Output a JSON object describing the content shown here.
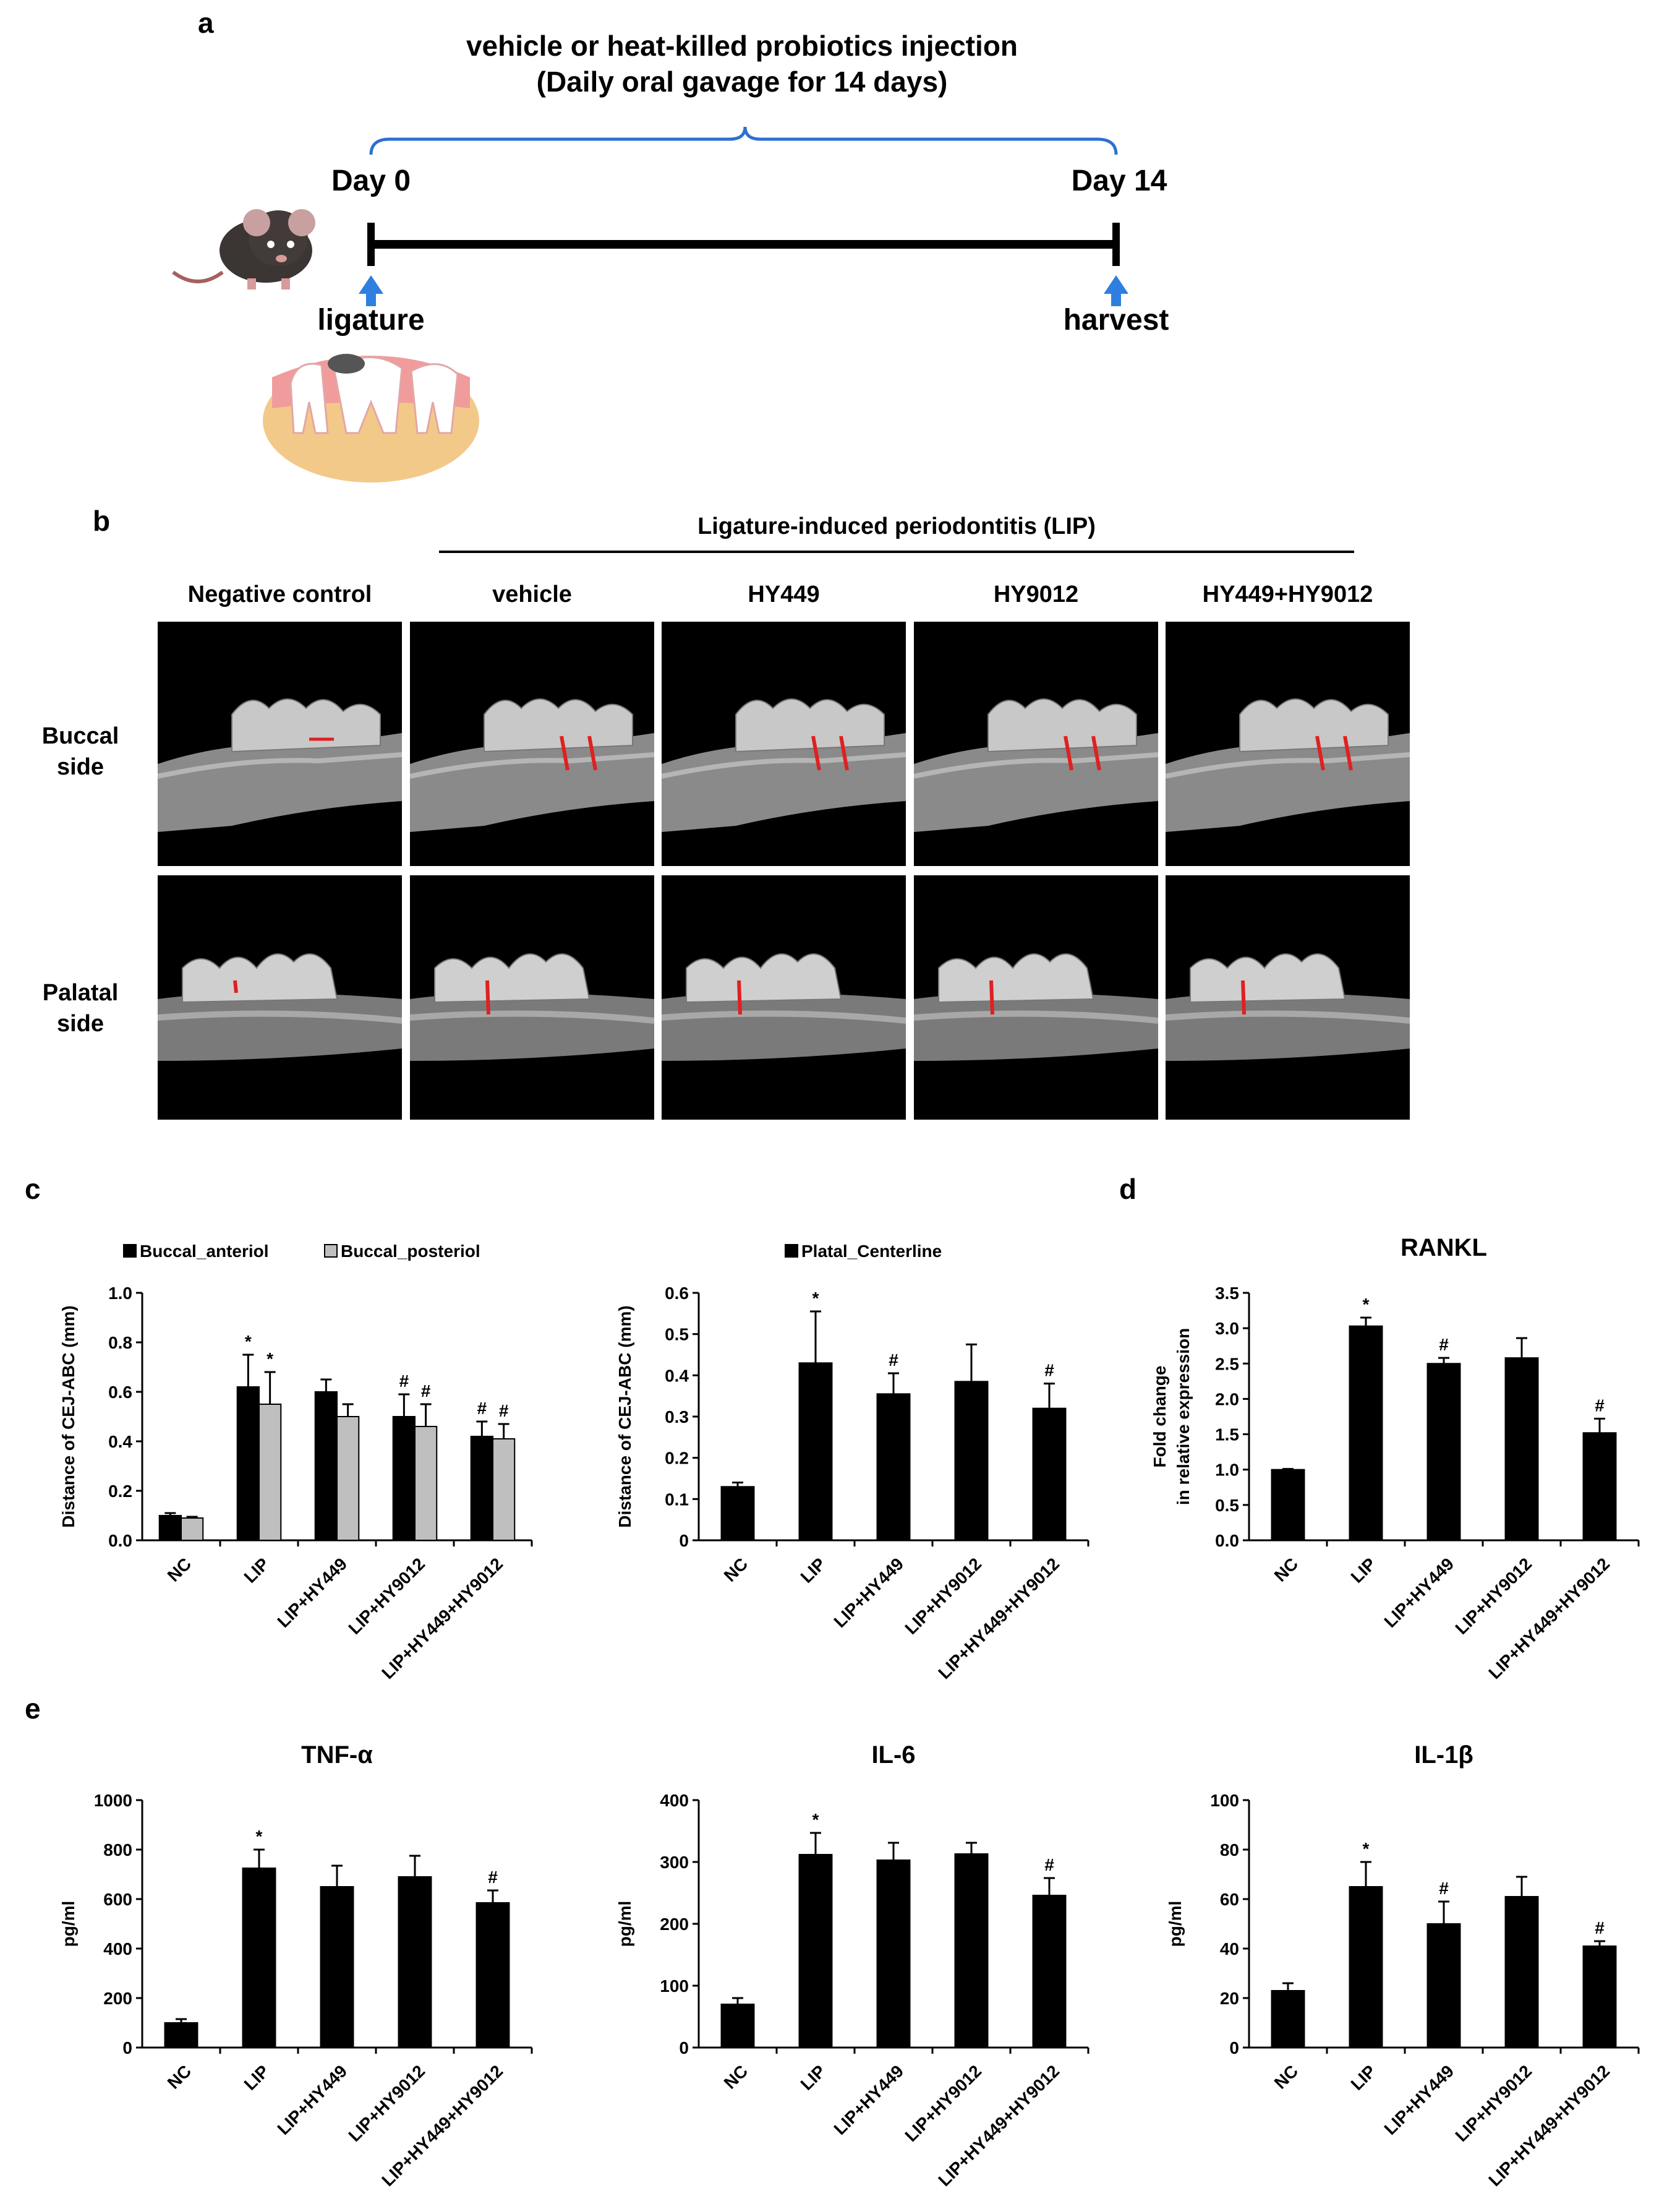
{
  "panels": {
    "a": {
      "label": "a",
      "title_line1": "vehicle or heat-killed probiotics injection",
      "title_line2": "(Daily oral gavage for 14 days)",
      "day0": "Day 0",
      "day14": "Day 14",
      "start_event": "ligature",
      "end_event": "harvest",
      "line_color": "#000000",
      "brace_color": "#2e6fd0",
      "arrow_color": "#2e7fe0"
    },
    "b": {
      "label": "b",
      "group_header": "Ligature-induced periodontitis (LIP)",
      "columns": [
        "Negative control",
        "vehicle",
        "HY449",
        "HY9012",
        "HY449+HY9012"
      ],
      "rows": [
        {
          "line1": "Buccal",
          "line2": "side"
        },
        {
          "line1": "Palatal",
          "line2": "side"
        }
      ]
    },
    "c_label": "c",
    "d_label": "d",
    "e_label": "e"
  },
  "chart_data": [
    {
      "id": "c-buccal",
      "type": "bar",
      "title": "",
      "ylabel": "Distance of CEJ-ABC (mm)",
      "ylim": [
        0,
        1.0
      ],
      "yticks": [
        "0.0",
        "0.2",
        "0.4",
        "0.6",
        "0.8",
        "1.0"
      ],
      "categories": [
        "NC",
        "LIP",
        "LIP+HY449",
        "LIP+HY9012",
        "LIP+HY449+HY9012"
      ],
      "series": [
        {
          "name": "Buccal_anteriol",
          "color": "#000000",
          "values": [
            0.1,
            0.62,
            0.6,
            0.5,
            0.42
          ],
          "errors": [
            0.01,
            0.13,
            0.05,
            0.09,
            0.06
          ],
          "marks": [
            "",
            "*",
            "",
            "#",
            "#"
          ]
        },
        {
          "name": "Buccal_posteriol",
          "color": "#bfbfbf",
          "values": [
            0.09,
            0.55,
            0.5,
            0.46,
            0.41
          ],
          "errors": [
            0.005,
            0.13,
            0.05,
            0.09,
            0.06
          ],
          "marks": [
            "",
            "*",
            "",
            "#",
            "#"
          ]
        }
      ],
      "legend": "top"
    },
    {
      "id": "c-palatal",
      "type": "bar",
      "title": "",
      "ylabel": "Distance of CEJ-ABC (mm)",
      "ylim": [
        0,
        0.6
      ],
      "yticks": [
        "0",
        "0.1",
        "0.2",
        "0.3",
        "0.4",
        "0.5",
        "0.6"
      ],
      "categories": [
        "NC",
        "LIP",
        "LIP+HY449",
        "LIP+HY9012",
        "LIP+HY449+HY9012"
      ],
      "series": [
        {
          "name": "Platal_Centerline",
          "color": "#000000",
          "values": [
            0.13,
            0.43,
            0.355,
            0.385,
            0.32
          ],
          "errors": [
            0.01,
            0.125,
            0.05,
            0.09,
            0.06
          ],
          "marks": [
            "",
            "*",
            "#",
            "",
            "#"
          ]
        }
      ],
      "legend": "top"
    },
    {
      "id": "d-rankl",
      "type": "bar",
      "title": "RANKL",
      "ylabel": "Fold change|in relative expression",
      "ylim": [
        0,
        3.5
      ],
      "yticks": [
        "0.0",
        "0.5",
        "1.0",
        "1.5",
        "2.0",
        "2.5",
        "3.0",
        "3.5"
      ],
      "categories": [
        "NC",
        "LIP",
        "LIP+HY449",
        "LIP+HY9012",
        "LIP+HY449+HY9012"
      ],
      "series": [
        {
          "name": "",
          "color": "#000000",
          "values": [
            1.0,
            3.03,
            2.5,
            2.58,
            1.52
          ],
          "errors": [
            0.01,
            0.12,
            0.08,
            0.28,
            0.2
          ],
          "marks": [
            "",
            "*",
            "#",
            "",
            "#"
          ]
        }
      ]
    },
    {
      "id": "e-tnf",
      "type": "bar",
      "title": "TNF-α",
      "ylabel": "pg/ml",
      "ylim": [
        0,
        1000
      ],
      "yticks": [
        "0",
        "200",
        "400",
        "600",
        "800",
        "1000"
      ],
      "categories": [
        "NC",
        "LIP",
        "LIP+HY449",
        "LIP+HY9012",
        "LIP+HY449+HY9012"
      ],
      "series": [
        {
          "name": "",
          "color": "#000000",
          "values": [
            100,
            725,
            650,
            690,
            585
          ],
          "errors": [
            15,
            75,
            85,
            85,
            50
          ],
          "marks": [
            "",
            "*",
            "",
            "",
            "#"
          ]
        }
      ]
    },
    {
      "id": "e-il6",
      "type": "bar",
      "title": "IL-6",
      "ylabel": "pg/ml",
      "ylim": [
        0,
        400
      ],
      "yticks": [
        "0",
        "100",
        "200",
        "300",
        "400"
      ],
      "categories": [
        "NC",
        "LIP",
        "LIP+HY449",
        "LIP+HY9012",
        "LIP+HY449+HY9012"
      ],
      "series": [
        {
          "name": "",
          "color": "#000000",
          "values": [
            70,
            312,
            303,
            313,
            246
          ],
          "errors": [
            10,
            35,
            28,
            18,
            28
          ],
          "marks": [
            "",
            "*",
            "",
            "",
            "#"
          ]
        }
      ]
    },
    {
      "id": "e-il1b",
      "type": "bar",
      "title": "IL-1β",
      "ylabel": "pg/ml",
      "ylim": [
        0,
        100
      ],
      "yticks": [
        "0",
        "20",
        "40",
        "60",
        "80",
        "100"
      ],
      "categories": [
        "NC",
        "LIP",
        "LIP+HY449",
        "LIP+HY9012",
        "LIP+HY449+HY9012"
      ],
      "series": [
        {
          "name": "",
          "color": "#000000",
          "values": [
            23,
            65,
            50,
            61,
            41
          ],
          "errors": [
            3,
            10,
            9,
            8,
            2
          ],
          "marks": [
            "",
            "*",
            "#",
            "",
            "#"
          ]
        }
      ]
    }
  ]
}
